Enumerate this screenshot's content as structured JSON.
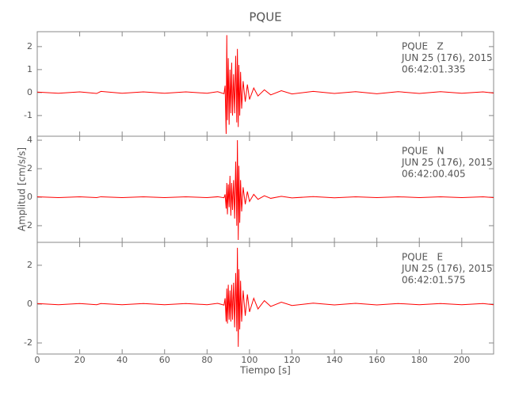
{
  "chart_data": [
    {
      "type": "line",
      "title": "PQUE",
      "color": "#ff0000",
      "annotations": [
        "PQUE   Z",
        "JUN 25 (176), 2015",
        "06:42:01.335"
      ],
      "xlim": [
        0,
        215
      ],
      "ylim": [
        -1.9,
        2.65
      ],
      "yticks": [
        -1,
        0,
        1,
        2
      ],
      "x": [
        0,
        10,
        20,
        28,
        30,
        40,
        50,
        60,
        70,
        80,
        85,
        88,
        88.5,
        89,
        89.3,
        89.6,
        90,
        90.4,
        90.8,
        91.2,
        91.6,
        92,
        92.5,
        93,
        93.5,
        94,
        94.3,
        94.7,
        95,
        95.4,
        95.8,
        96.3,
        97,
        98,
        99,
        100,
        102,
        104,
        107,
        110,
        115,
        120,
        130,
        140,
        150,
        160,
        170,
        180,
        190,
        200,
        210,
        215
      ],
      "values": [
        0.02,
        -0.03,
        0.03,
        -0.04,
        0.05,
        -0.03,
        0.03,
        -0.03,
        0.03,
        -0.03,
        0.04,
        -0.05,
        0.3,
        -1.8,
        2.5,
        -1.2,
        1.5,
        -1.4,
        1.0,
        -0.9,
        1.3,
        -1.0,
        0.8,
        -0.9,
        1.6,
        -1.3,
        1.9,
        -1.5,
        1.2,
        -1.0,
        0.9,
        -0.7,
        0.5,
        -0.4,
        0.35,
        -0.3,
        0.2,
        -0.15,
        0.12,
        -0.1,
        0.08,
        -0.06,
        0.05,
        -0.04,
        0.04,
        -0.05,
        0.04,
        -0.04,
        0.04,
        -0.03,
        0.03,
        -0.02
      ]
    },
    {
      "type": "line",
      "ylabel": "Amplitud [cm/s/s]",
      "color": "#ff0000",
      "annotations": [
        "PQUE   N",
        "JUN 25 (176), 2015",
        "06:42:00.405"
      ],
      "xlim": [
        0,
        215
      ],
      "ylim": [
        -3.17,
        4.28
      ],
      "yticks": [
        -2,
        0,
        2,
        4
      ],
      "x": [
        0,
        10,
        20,
        28,
        30,
        40,
        50,
        60,
        70,
        80,
        85,
        88,
        88.5,
        89,
        89.3,
        89.6,
        90,
        90.4,
        90.8,
        91.2,
        91.6,
        92,
        92.5,
        93,
        93.5,
        94,
        94.3,
        94.7,
        95,
        95.4,
        95.8,
        96.3,
        97,
        98,
        99,
        100,
        102,
        104,
        107,
        110,
        115,
        120,
        130,
        140,
        150,
        160,
        170,
        180,
        190,
        200,
        210,
        215
      ],
      "values": [
        0.03,
        -0.03,
        0.03,
        -0.03,
        0.03,
        -0.03,
        0.03,
        -0.03,
        0.03,
        -0.03,
        0.03,
        -0.04,
        0.2,
        -0.8,
        1.0,
        -1.2,
        0.9,
        -0.7,
        1.5,
        -1.3,
        1.0,
        -0.9,
        1.2,
        -1.5,
        2.5,
        -2.0,
        4.0,
        -3.0,
        2.2,
        -1.8,
        1.2,
        -1.0,
        0.7,
        -0.5,
        0.4,
        -0.3,
        0.2,
        -0.15,
        0.1,
        -0.08,
        0.06,
        -0.05,
        0.04,
        -0.04,
        0.03,
        -0.03,
        0.03,
        -0.03,
        0.03,
        -0.03,
        0.03,
        -0.03
      ]
    },
    {
      "type": "line",
      "xlabel": "Tiempo [s]",
      "color": "#ff0000",
      "annotations": [
        "PQUE   E",
        "JUN 25 (176), 2015",
        "06:42:01.575"
      ],
      "xlim": [
        0,
        215
      ],
      "xticks": [
        0,
        20,
        40,
        60,
        80,
        100,
        120,
        140,
        160,
        180,
        200
      ],
      "ylim": [
        -2.57,
        3.18
      ],
      "yticks": [
        -2,
        0,
        2
      ],
      "x": [
        0,
        10,
        20,
        28,
        30,
        40,
        50,
        60,
        70,
        80,
        85,
        88,
        88.5,
        89,
        89.3,
        89.6,
        90,
        90.4,
        90.8,
        91.2,
        91.6,
        92,
        92.5,
        93,
        93.5,
        94,
        94.3,
        94.7,
        95,
        95.4,
        95.8,
        96.3,
        97,
        98,
        99,
        100,
        102,
        104,
        107,
        110,
        115,
        120,
        130,
        140,
        150,
        160,
        170,
        180,
        190,
        200,
        210,
        215
      ],
      "values": [
        0.03,
        -0.03,
        0.03,
        -0.03,
        0.03,
        -0.03,
        0.03,
        -0.03,
        0.03,
        -0.03,
        0.04,
        -0.05,
        0.3,
        -0.9,
        0.8,
        -1.0,
        1.0,
        -0.8,
        0.7,
        -0.9,
        1.0,
        -0.8,
        1.1,
        -1.2,
        1.6,
        -1.4,
        2.9,
        -2.2,
        1.8,
        -1.3,
        1.2,
        -0.9,
        0.7,
        -0.6,
        0.5,
        -0.4,
        0.3,
        -0.25,
        0.18,
        -0.12,
        0.1,
        -0.07,
        0.05,
        -0.04,
        0.04,
        -0.04,
        0.03,
        -0.03,
        0.03,
        -0.03,
        0.03,
        -0.03
      ]
    }
  ]
}
